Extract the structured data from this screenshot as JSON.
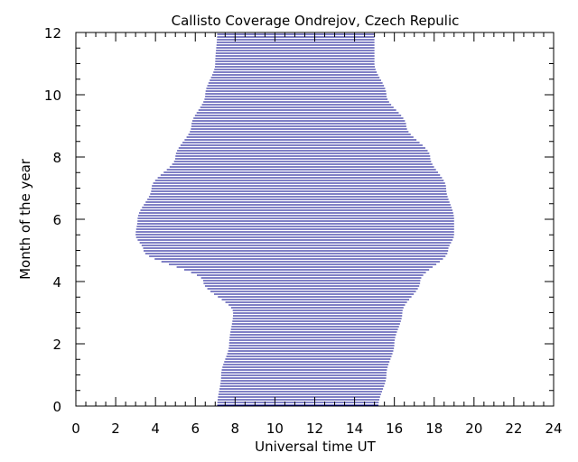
{
  "chart_data": {
    "type": "area",
    "title": "Callisto Coverage Ondrejov, Czech Repulic",
    "xlabel": "Universal time UT",
    "ylabel": "Month of the year",
    "xlim": [
      0,
      24
    ],
    "ylim": [
      0,
      12
    ],
    "x_ticks": [
      "0",
      "2",
      "4",
      "6",
      "8",
      "10",
      "12",
      "14",
      "16",
      "18",
      "20",
      "22",
      "24"
    ],
    "y_ticks": [
      "0",
      "2",
      "4",
      "6",
      "8",
      "10",
      "12"
    ],
    "grid": false,
    "fill_style": "horizontal lines",
    "line_color": "#00008b",
    "series": [
      {
        "month": [
          0,
          1,
          2,
          3,
          4,
          5,
          5.5,
          6,
          7,
          8,
          9,
          10,
          11,
          12
        ],
        "start_ut": [
          7.1,
          7.3,
          7.7,
          7.9,
          6.4,
          3.4,
          3.0,
          3.1,
          3.8,
          5.0,
          5.8,
          6.5,
          7.0,
          7.1
        ],
        "end_ut": [
          15.2,
          15.6,
          16.0,
          16.4,
          17.3,
          18.7,
          19.0,
          19.0,
          18.6,
          17.8,
          16.6,
          15.6,
          15.0,
          15.0
        ]
      }
    ]
  }
}
